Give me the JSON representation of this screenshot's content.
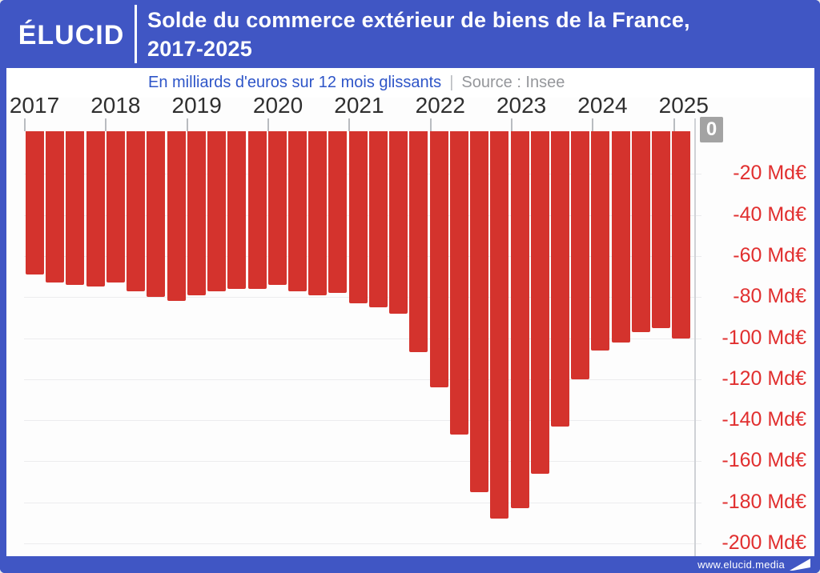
{
  "header": {
    "logo": "ÉLUCID",
    "title_line1": "Solde du commerce extérieur de biens de la France,",
    "title_line2": "2017-2025"
  },
  "subtitle": {
    "text": "En milliards d'euros sur 12 mois glissants",
    "separator": "|",
    "source": "Source : Insee"
  },
  "footer": {
    "url": "www.elucid.media"
  },
  "colors": {
    "frame_blue": "#4056c4",
    "bar_red": "#d4332d",
    "axis_label_red": "#e12f2f",
    "subtitle_blue": "#2e55c8",
    "source_gray": "#95979b",
    "zero_badge_gray": "#a3a3a3",
    "year_label_gray": "#2f2f2f"
  },
  "chart_data": {
    "type": "bar",
    "title": "Solde du commerce extérieur de biens de la France, 2017-2025",
    "subtitle": "En milliards d'euros sur 12 mois glissants",
    "source": "Source : Insee",
    "unit": "Md€",
    "ylim": [
      -200,
      0
    ],
    "grid": true,
    "legend_position": "none",
    "bar_color": "#d4332d",
    "x_year_labels": [
      "2017",
      "2018",
      "2019",
      "2020",
      "2021",
      "2022",
      "2023",
      "2024",
      "2025"
    ],
    "quarters_per_year": 4,
    "x": [
      "2017-T1",
      "2017-T2",
      "2017-T3",
      "2017-T4",
      "2018-T1",
      "2018-T2",
      "2018-T3",
      "2018-T4",
      "2019-T1",
      "2019-T2",
      "2019-T3",
      "2019-T4",
      "2020-T1",
      "2020-T2",
      "2020-T3",
      "2020-T4",
      "2021-T1",
      "2021-T2",
      "2021-T3",
      "2021-T4",
      "2022-T1",
      "2022-T2",
      "2022-T3",
      "2022-T4",
      "2023-T1",
      "2023-T2",
      "2023-T3",
      "2023-T4",
      "2024-T1",
      "2024-T2",
      "2024-T3",
      "2024-T4",
      "2025-T1"
    ],
    "values": [
      -69,
      -73,
      -74,
      -75,
      -73,
      -77,
      -80,
      -82,
      -79,
      -77,
      -76,
      -76,
      -74,
      -77,
      -79,
      -78,
      -83,
      -85,
      -88,
      -107,
      -124,
      -147,
      -175,
      -188,
      -183,
      -166,
      -143,
      -120,
      -106,
      -102,
      -97,
      -95,
      -100
    ],
    "y_tick_labels": [
      "0",
      "-20 Md€",
      "-40 Md€",
      "-60 Md€",
      "-80 Md€",
      "-100 Md€",
      "-120 Md€",
      "-140 Md€",
      "-160 Md€",
      "-180 Md€",
      "-200 Md€"
    ]
  }
}
